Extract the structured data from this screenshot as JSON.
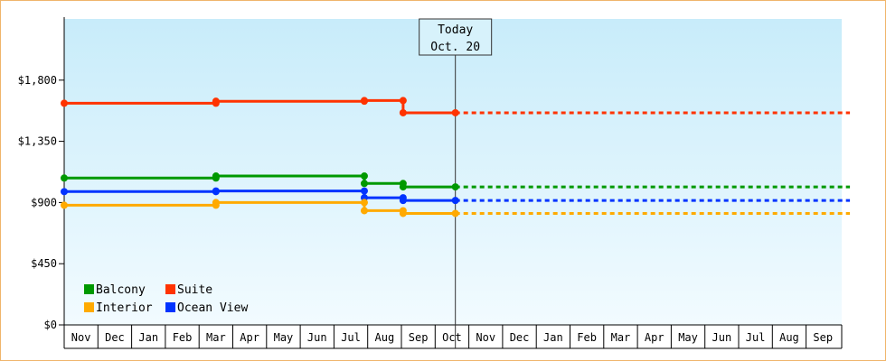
{
  "chart_data": {
    "type": "line",
    "step": true,
    "y_axis": {
      "ylim": [
        0,
        2250
      ],
      "ticks": [
        0,
        450,
        900,
        1350,
        1800
      ],
      "tick_labels": [
        "$0",
        "$450",
        "$900",
        "$1,350",
        "$1,800"
      ]
    },
    "x_axis": {
      "months": [
        "Nov",
        "Dec",
        "Jan",
        "Feb",
        "Mar",
        "Apr",
        "May",
        "Jun",
        "Jul",
        "Aug",
        "Sep",
        "Oct",
        "Nov",
        "Dec",
        "Jan",
        "Feb",
        "Mar",
        "Apr",
        "May",
        "Jun",
        "Jul",
        "Aug",
        "Sep"
      ]
    },
    "today_marker": {
      "line1": "Today",
      "line2": "Oct. 20",
      "x": 11.6
    },
    "grid": false,
    "legend_placement": "bottom-left",
    "series": [
      {
        "name": "Suite",
        "color": "#ff3300",
        "points": [
          [
            0,
            1630
          ],
          [
            4.5,
            1630
          ],
          [
            4.5,
            1645
          ],
          [
            8.9,
            1645
          ],
          [
            8.9,
            1650
          ],
          [
            10.05,
            1650
          ],
          [
            10.05,
            1560
          ],
          [
            11.6,
            1560
          ]
        ],
        "markers": [
          0,
          4.5,
          8.9,
          10.05,
          11.6
        ],
        "projected_to": 23.3
      },
      {
        "name": "Balcony",
        "color": "#009900",
        "points": [
          [
            0,
            1080
          ],
          [
            4.5,
            1080
          ],
          [
            4.5,
            1095
          ],
          [
            8.9,
            1095
          ],
          [
            8.9,
            1040
          ],
          [
            10.05,
            1040
          ],
          [
            10.05,
            1015
          ],
          [
            11.6,
            1015
          ]
        ],
        "markers": [
          0,
          4.5,
          8.9,
          10.05,
          11.6
        ],
        "projected_to": 23.3
      },
      {
        "name": "Ocean View",
        "color": "#0033ff",
        "points": [
          [
            0,
            980
          ],
          [
            4.5,
            980
          ],
          [
            4.5,
            985
          ],
          [
            8.9,
            985
          ],
          [
            8.9,
            935
          ],
          [
            10.05,
            935
          ],
          [
            10.05,
            915
          ],
          [
            11.6,
            915
          ]
        ],
        "markers": [
          0,
          4.5,
          8.9,
          10.05,
          11.6
        ],
        "projected_to": 23.3
      },
      {
        "name": "Interior",
        "color": "#ffaa00",
        "points": [
          [
            0,
            880
          ],
          [
            4.5,
            880
          ],
          [
            4.5,
            900
          ],
          [
            8.9,
            900
          ],
          [
            8.9,
            840
          ],
          [
            10.05,
            840
          ],
          [
            10.05,
            820
          ],
          [
            11.6,
            820
          ]
        ],
        "markers": [
          0,
          4.5,
          8.9,
          10.05,
          11.6
        ],
        "projected_to": 23.3
      }
    ],
    "legend": [
      {
        "name": "Balcony",
        "color": "#009900"
      },
      {
        "name": "Suite",
        "color": "#ff3300"
      },
      {
        "name": "Interior",
        "color": "#ffaa00"
      },
      {
        "name": "Ocean View",
        "color": "#0033ff"
      }
    ]
  }
}
